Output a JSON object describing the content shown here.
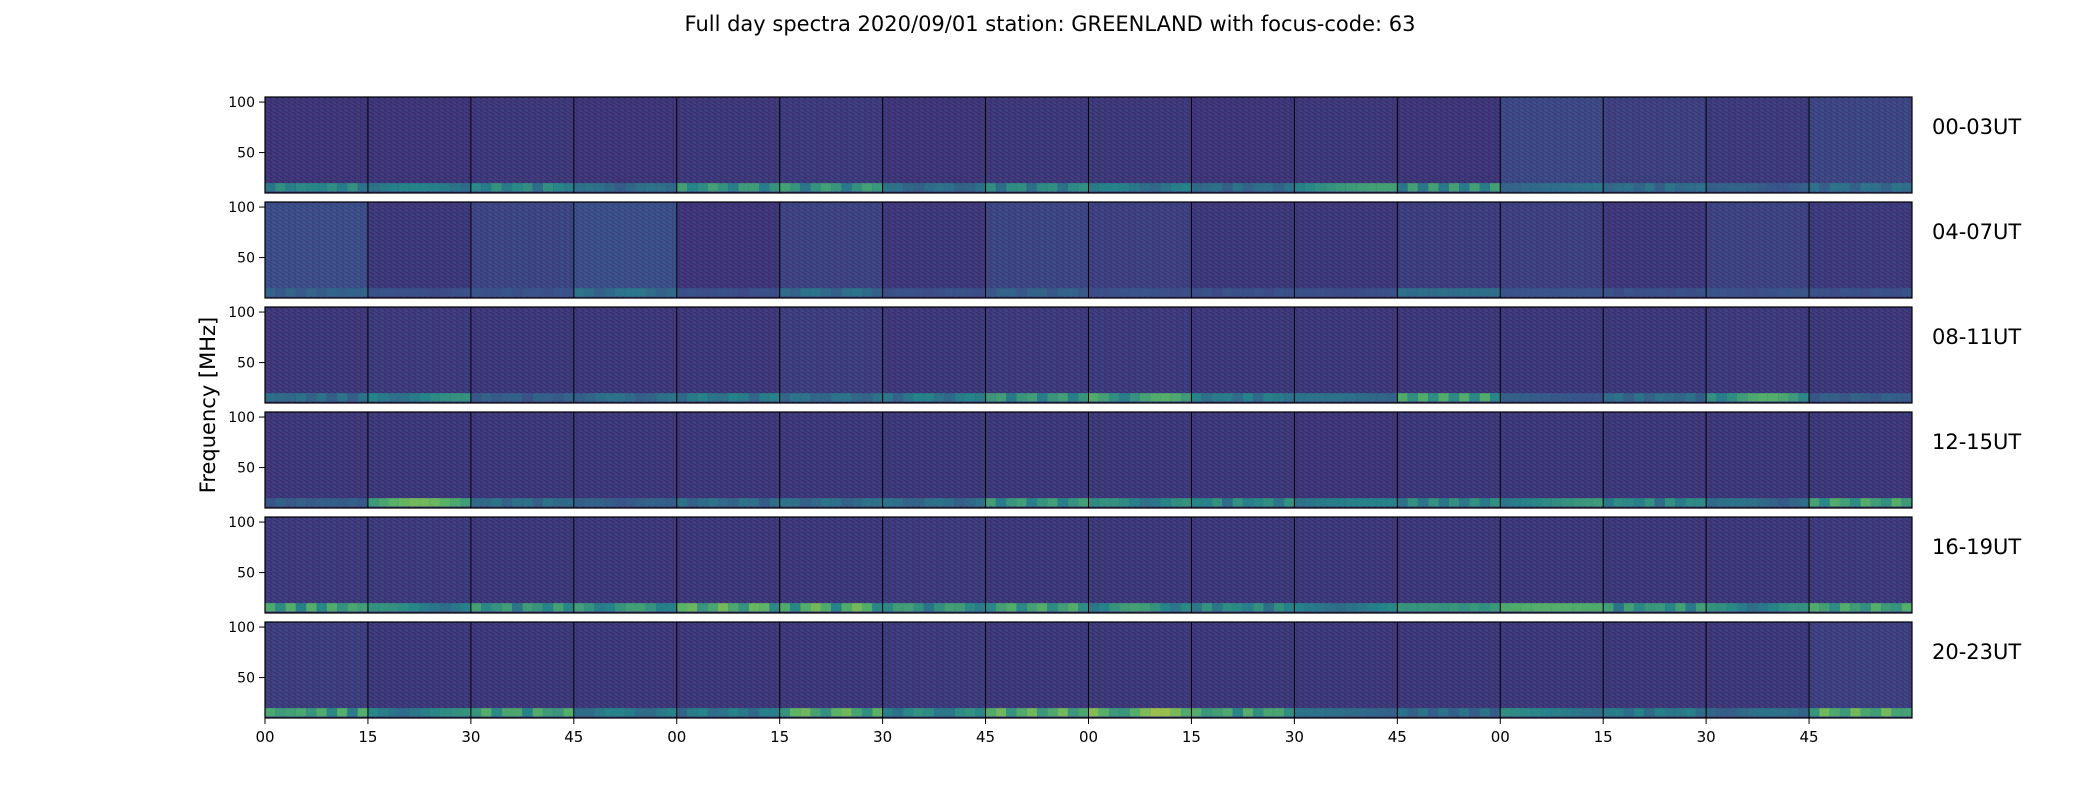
{
  "chart_data": {
    "type": "heatmap",
    "title": "Full day spectra 2020/09/01 station: GREENLAND with focus-code: 63",
    "ylabel": "Frequency [MHz]",
    "ylim": [
      10,
      105
    ],
    "yticks": [
      "100",
      "50"
    ],
    "xticks": [
      "00",
      "15",
      "30",
      "45",
      "00",
      "15",
      "30",
      "45",
      "00",
      "15",
      "30",
      "45",
      "00",
      "15",
      "30",
      "45"
    ],
    "rows": [
      {
        "label": "00-03UT",
        "band_intensity": [
          0.5,
          0.4,
          0.5,
          0.3,
          0.6,
          0.6,
          0.3,
          0.5,
          0.4,
          0.3,
          0.6,
          0.6,
          0.3,
          0.3,
          0.2,
          0.3
        ],
        "broadband": [
          0.1,
          0.1,
          0.15,
          0.1,
          0.15,
          0.2,
          0.1,
          0.15,
          0.15,
          0.1,
          0.15,
          0.1,
          0.45,
          0.3,
          0.2,
          0.4
        ]
      },
      {
        "label": "04-07UT",
        "band_intensity": [
          0.2,
          0.1,
          0.1,
          0.3,
          0.1,
          0.3,
          0.1,
          0.2,
          0.1,
          0.1,
          0.1,
          0.3,
          0.1,
          0.1,
          0.1,
          0.1
        ],
        "broadband": [
          0.55,
          0.15,
          0.4,
          0.6,
          0.1,
          0.35,
          0.15,
          0.4,
          0.3,
          0.15,
          0.15,
          0.25,
          0.3,
          0.15,
          0.35,
          0.2
        ]
      },
      {
        "label": "08-11UT",
        "band_intensity": [
          0.3,
          0.5,
          0.2,
          0.3,
          0.4,
          0.3,
          0.4,
          0.6,
          0.7,
          0.4,
          0.3,
          0.7,
          0.2,
          0.3,
          0.7,
          0.2
        ],
        "broadband": [
          0.15,
          0.2,
          0.15,
          0.15,
          0.15,
          0.25,
          0.15,
          0.2,
          0.2,
          0.15,
          0.15,
          0.15,
          0.15,
          0.15,
          0.2,
          0.15
        ]
      },
      {
        "label": "12-15UT",
        "band_intensity": [
          0.2,
          0.8,
          0.3,
          0.2,
          0.3,
          0.3,
          0.3,
          0.6,
          0.5,
          0.5,
          0.4,
          0.5,
          0.6,
          0.5,
          0.3,
          0.7
        ],
        "broadband": [
          0.15,
          0.15,
          0.15,
          0.15,
          0.15,
          0.15,
          0.15,
          0.15,
          0.15,
          0.15,
          0.1,
          0.15,
          0.15,
          0.15,
          0.15,
          0.15
        ]
      },
      {
        "label": "16-19UT",
        "band_intensity": [
          0.7,
          0.5,
          0.6,
          0.6,
          0.8,
          0.8,
          0.6,
          0.7,
          0.6,
          0.5,
          0.5,
          0.6,
          0.7,
          0.6,
          0.5,
          0.7
        ],
        "broadband": [
          0.2,
          0.2,
          0.15,
          0.15,
          0.15,
          0.15,
          0.2,
          0.15,
          0.15,
          0.15,
          0.15,
          0.15,
          0.15,
          0.15,
          0.15,
          0.2
        ]
      },
      {
        "label": "20-23UT",
        "band_intensity": [
          0.7,
          0.5,
          0.7,
          0.4,
          0.4,
          0.8,
          0.5,
          0.8,
          0.9,
          0.7,
          0.3,
          0.3,
          0.5,
          0.4,
          0.3,
          0.8
        ],
        "broadband": [
          0.25,
          0.15,
          0.15,
          0.15,
          0.15,
          0.15,
          0.2,
          0.15,
          0.15,
          0.15,
          0.15,
          0.15,
          0.15,
          0.15,
          0.15,
          0.3
        ]
      }
    ],
    "colormap": "viridis",
    "colors": {
      "low": "#3b1d59",
      "mid": "#2a8f8a",
      "high": "#e3e41a",
      "background": "#ffffff"
    }
  }
}
